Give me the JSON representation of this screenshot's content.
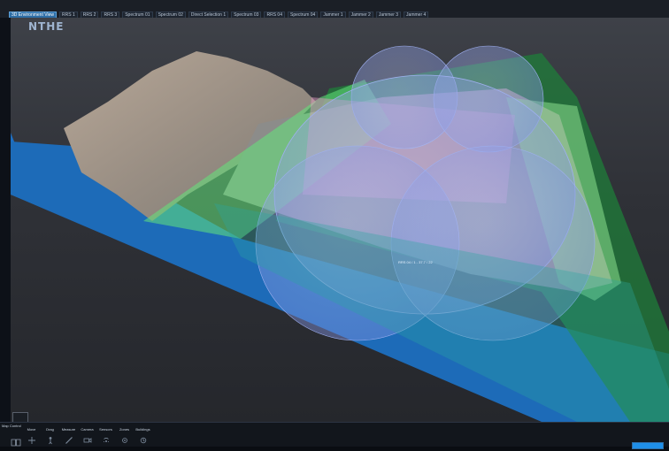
{
  "app": {
    "logo_text": "NTHE",
    "logo_subtitle": ""
  },
  "topbar": {
    "tabs": [
      {
        "label": "3D Environment View",
        "active": true
      },
      {
        "label": "RRS 1",
        "active": false
      },
      {
        "label": "RRS 2",
        "active": false
      },
      {
        "label": "RRS 3",
        "active": false
      },
      {
        "label": "Spectrum 01",
        "active": false
      },
      {
        "label": "Spectrum 02",
        "active": false
      },
      {
        "label": "Direct Selection 1",
        "active": false
      },
      {
        "label": "Spectrum 03",
        "active": false
      },
      {
        "label": "RRS 04",
        "active": false
      },
      {
        "label": "Spectrum 04",
        "active": false
      },
      {
        "label": "Jammer 1",
        "active": false
      },
      {
        "label": "Jammer 2",
        "active": false
      },
      {
        "label": "Jammer 3",
        "active": false
      },
      {
        "label": "Jammer 4",
        "active": false
      }
    ]
  },
  "viewport": {
    "center_label": "RRS 04 / 1 - 37.7 / 22"
  },
  "panel": {
    "title": "Map Control",
    "tools": [
      {
        "label": "Move",
        "icon": "crosshair-icon"
      },
      {
        "label": "Drag",
        "icon": "drag-person-icon"
      },
      {
        "label": "Measure",
        "icon": "ruler-icon"
      },
      {
        "label": "Camera",
        "icon": "camera-icon"
      },
      {
        "label": "Sensors",
        "icon": "sensors-icon"
      },
      {
        "label": "Zones",
        "icon": "zone-icon"
      },
      {
        "label": "Buildings",
        "icon": "building-icon"
      }
    ]
  },
  "colors": {
    "ocean": "#1e6fc2",
    "green_zone": "#4fe06e",
    "dark_green_zone": "#1f7d3a",
    "pink_zone": "#e89cc8",
    "sphere": "#93a8f0",
    "accent": "#1f8fe8"
  }
}
